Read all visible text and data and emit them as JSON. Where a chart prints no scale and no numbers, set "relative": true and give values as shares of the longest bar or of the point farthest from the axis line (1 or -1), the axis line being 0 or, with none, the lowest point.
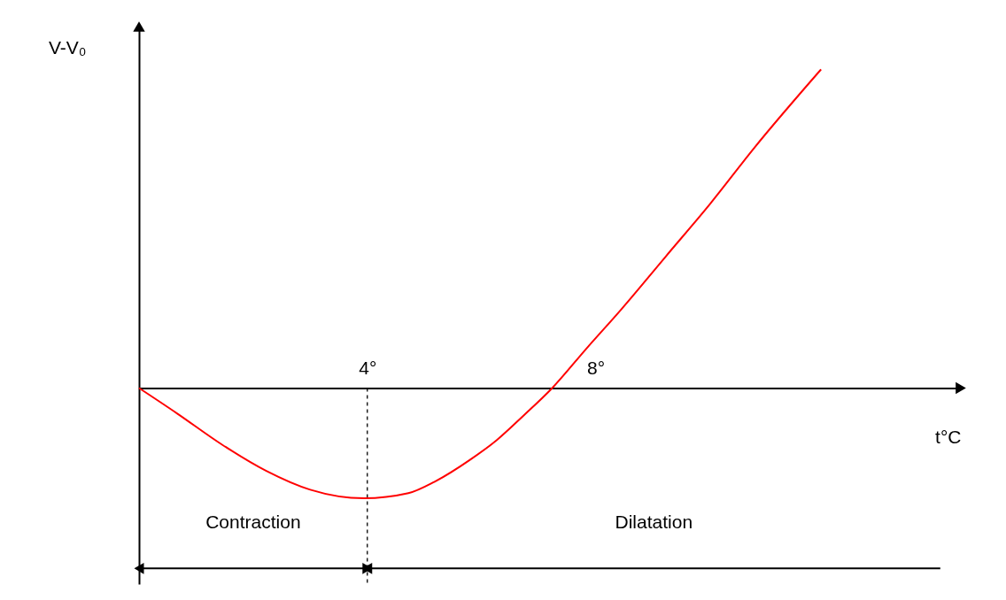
{
  "chart_data": {
    "type": "line",
    "relative": true,
    "xlabel": "t°C",
    "ylabel": "V-V₀",
    "xlim": [
      0,
      14.4
    ],
    "xticks": [
      {
        "value": 4,
        "label": "4°"
      },
      {
        "value": 8,
        "label": "8°"
      }
    ],
    "x": [
      0,
      0.67,
      1.45,
      2.23,
      3.0,
      3.94,
      4.72,
      5.18,
      5.81,
      6.27,
      6.74,
      7.24,
      7.83,
      8.45,
      9.23,
      10.01,
      10.79,
      11.95
    ],
    "series": [
      {
        "color": "#ff0000",
        "values": [
          0,
          -0.08,
          -0.177,
          -0.26,
          -0.319,
          -0.346,
          -0.33,
          -0.294,
          -0.224,
          -0.163,
          -0.086,
          0,
          0.122,
          0.247,
          0.413,
          0.579,
          0.756,
          1
        ]
      }
    ],
    "ref_lines": [
      {
        "axis": "x",
        "value": 4,
        "line_style": "dashed"
      }
    ],
    "annotations": [
      "Contraction",
      "Dilatation"
    ]
  }
}
